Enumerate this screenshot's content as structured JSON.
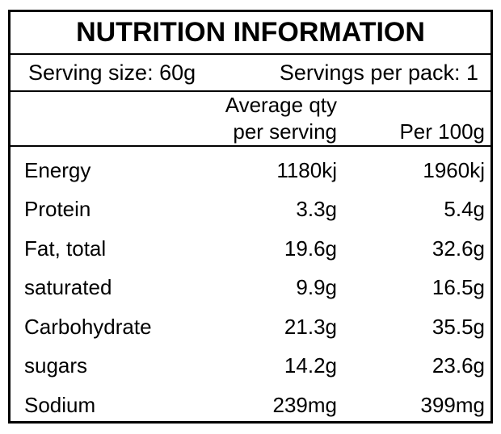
{
  "label": {
    "title": "NUTRITION INFORMATION",
    "serving_size": "Serving size: 60g",
    "servings_per_pack": "Servings per pack: 1",
    "columns": {
      "qty_header": "Average qty\nper serving",
      "per_100_header": "Per 100g"
    },
    "rows": [
      {
        "nutrient": "Energy",
        "per_serving": "1180kj",
        "per_100g": "1960kj"
      },
      {
        "nutrient": "Protein",
        "per_serving": "3.3g",
        "per_100g": "5.4g"
      },
      {
        "nutrient": "Fat, total",
        "per_serving": "19.6g",
        "per_100g": "32.6g"
      },
      {
        "nutrient": "saturated",
        "per_serving": "9.9g",
        "per_100g": "16.5g"
      },
      {
        "nutrient": "Carbohydrate",
        "per_serving": "21.3g",
        "per_100g": "35.5g"
      },
      {
        "nutrient": "sugars",
        "per_serving": "14.2g",
        "per_100g": "23.6g"
      },
      {
        "nutrient": "Sodium",
        "per_serving": "239mg",
        "per_100g": "399mg"
      }
    ],
    "colors": {
      "text": "#000000",
      "background": "#ffffff",
      "border": "#000000"
    }
  }
}
